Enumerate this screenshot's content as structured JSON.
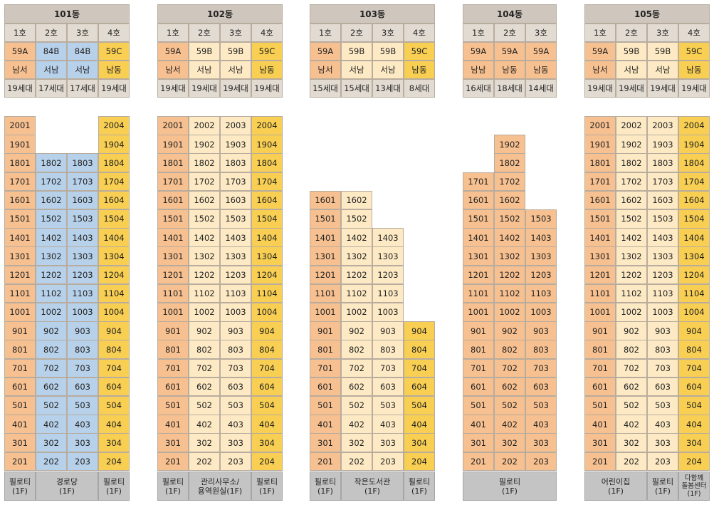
{
  "buildings": [
    {
      "name": "101동",
      "columns": [
        {
          "ho": "1호",
          "type": "59A",
          "dir": "남서",
          "units": "19세대",
          "color": "or",
          "rooms": [
            "2001",
            "1901",
            "1801",
            "1701",
            "1601",
            "1501",
            "1401",
            "1301",
            "1201",
            "1101",
            "1001",
            "901",
            "801",
            "701",
            "601",
            "501",
            "401",
            "301",
            "201"
          ]
        },
        {
          "ho": "2호",
          "type": "84B",
          "dir": "서남",
          "units": "17세대",
          "color": "bl",
          "rooms": [
            "1802",
            "1702",
            "1602",
            "1502",
            "1402",
            "1302",
            "1202",
            "1102",
            "1002",
            "902",
            "802",
            "702",
            "602",
            "502",
            "402",
            "302",
            "202"
          ]
        },
        {
          "ho": "3호",
          "type": "84B",
          "dir": "서남",
          "units": "17세대",
          "color": "bl",
          "rooms": [
            "1803",
            "1703",
            "1603",
            "1503",
            "1403",
            "1303",
            "1203",
            "1103",
            "1003",
            "903",
            "803",
            "703",
            "603",
            "503",
            "403",
            "303",
            "203"
          ]
        },
        {
          "ho": "4호",
          "type": "59C",
          "dir": "남동",
          "units": "19세대",
          "color": "ye",
          "rooms": [
            "2004",
            "1904",
            "1804",
            "1704",
            "1604",
            "1504",
            "1404",
            "1304",
            "1204",
            "1104",
            "1004",
            "904",
            "804",
            "704",
            "604",
            "504",
            "404",
            "304",
            "204"
          ]
        }
      ],
      "ground": [
        {
          "lines": [
            "필로티",
            "(1F)"
          ],
          "span": 1
        },
        {
          "lines": [
            "경로당",
            "(1F)"
          ],
          "span": 2
        },
        {
          "lines": [
            "필로티",
            "(1F)"
          ],
          "span": 1
        }
      ]
    },
    {
      "name": "102동",
      "columns": [
        {
          "ho": "1호",
          "type": "59A",
          "dir": "남서",
          "units": "19세대",
          "color": "or",
          "rooms": [
            "2001",
            "1901",
            "1801",
            "1701",
            "1601",
            "1501",
            "1401",
            "1301",
            "1201",
            "1101",
            "1001",
            "901",
            "801",
            "701",
            "601",
            "501",
            "401",
            "301",
            "201"
          ]
        },
        {
          "ho": "2호",
          "type": "59B",
          "dir": "서남",
          "units": "19세대",
          "color": "cr",
          "rooms": [
            "2002",
            "1902",
            "1802",
            "1702",
            "1602",
            "1502",
            "1402",
            "1302",
            "1202",
            "1102",
            "1002",
            "902",
            "802",
            "702",
            "602",
            "502",
            "402",
            "302",
            "202"
          ]
        },
        {
          "ho": "3호",
          "type": "59B",
          "dir": "서남",
          "units": "19세대",
          "color": "cr",
          "rooms": [
            "2003",
            "1903",
            "1803",
            "1703",
            "1603",
            "1503",
            "1403",
            "1303",
            "1203",
            "1103",
            "1003",
            "903",
            "803",
            "703",
            "603",
            "503",
            "403",
            "303",
            "203"
          ]
        },
        {
          "ho": "4호",
          "type": "59C",
          "dir": "남동",
          "units": "19세대",
          "color": "ye",
          "rooms": [
            "2004",
            "1904",
            "1804",
            "1704",
            "1604",
            "1504",
            "1404",
            "1304",
            "1204",
            "1104",
            "1004",
            "904",
            "804",
            "704",
            "604",
            "504",
            "404",
            "304",
            "204"
          ]
        }
      ],
      "ground": [
        {
          "lines": [
            "필로티",
            "(1F)"
          ],
          "span": 1
        },
        {
          "lines": [
            "관리사무소/",
            "용역원실(1F)"
          ],
          "span": 2
        },
        {
          "lines": [
            "필로티",
            "(1F)"
          ],
          "span": 1
        }
      ]
    },
    {
      "name": "103동",
      "columns": [
        {
          "ho": "1호",
          "type": "59A",
          "dir": "남서",
          "units": "15세대",
          "color": "or",
          "rooms": [
            "1601",
            "1501",
            "1401",
            "1301",
            "1201",
            "1101",
            "1001",
            "901",
            "801",
            "701",
            "601",
            "501",
            "401",
            "301",
            "201"
          ]
        },
        {
          "ho": "2호",
          "type": "59B",
          "dir": "서남",
          "units": "15세대",
          "color": "cr",
          "rooms": [
            "1602",
            "1502",
            "1402",
            "1302",
            "1202",
            "1102",
            "1002",
            "902",
            "802",
            "702",
            "602",
            "502",
            "402",
            "302",
            "202"
          ]
        },
        {
          "ho": "3호",
          "type": "59B",
          "dir": "서남",
          "units": "13세대",
          "color": "cr",
          "rooms": [
            "1403",
            "1303",
            "1203",
            "1103",
            "1003",
            "903",
            "803",
            "703",
            "603",
            "503",
            "403",
            "303",
            "203"
          ]
        },
        {
          "ho": "4호",
          "type": "59C",
          "dir": "남동",
          "units": "8세대",
          "color": "ye",
          "rooms": [
            "904",
            "804",
            "704",
            "604",
            "504",
            "404",
            "304",
            "204"
          ]
        }
      ],
      "ground": [
        {
          "lines": [
            "필로티",
            "(1F)"
          ],
          "span": 1
        },
        {
          "lines": [
            "작은도서관",
            "(1F)"
          ],
          "span": 2
        },
        {
          "lines": [
            "필로티",
            "(1F)"
          ],
          "span": 1
        }
      ]
    },
    {
      "name": "104동",
      "columns": [
        {
          "ho": "1호",
          "type": "59A",
          "dir": "남남",
          "units": "16세대",
          "color": "or",
          "rooms": [
            "1701",
            "1601",
            "1501",
            "1401",
            "1301",
            "1201",
            "1101",
            "1001",
            "901",
            "801",
            "701",
            "601",
            "501",
            "401",
            "301",
            "201"
          ]
        },
        {
          "ho": "2호",
          "type": "59A",
          "dir": "남동",
          "units": "18세대",
          "color": "or",
          "rooms": [
            "1902",
            "1802",
            "1702",
            "1602",
            "1502",
            "1402",
            "1302",
            "1202",
            "1102",
            "1002",
            "902",
            "802",
            "702",
            "602",
            "502",
            "402",
            "302",
            "202"
          ]
        },
        {
          "ho": "3호",
          "type": "59A",
          "dir": "남동",
          "units": "14세대",
          "color": "or",
          "rooms": [
            "1503",
            "1403",
            "1303",
            "1203",
            "1103",
            "1003",
            "903",
            "803",
            "703",
            "603",
            "503",
            "403",
            "303",
            "203"
          ]
        }
      ],
      "ground": [
        {
          "lines": [
            "필로티",
            "(1F)"
          ],
          "span": 3
        }
      ]
    },
    {
      "name": "105동",
      "columns": [
        {
          "ho": "1호",
          "type": "59A",
          "dir": "남서",
          "units": "19세대",
          "color": "or",
          "rooms": [
            "2001",
            "1901",
            "1801",
            "1701",
            "1601",
            "1501",
            "1401",
            "1301",
            "1201",
            "1101",
            "1001",
            "901",
            "801",
            "701",
            "601",
            "501",
            "401",
            "301",
            "201"
          ]
        },
        {
          "ho": "2호",
          "type": "59B",
          "dir": "서남",
          "units": "19세대",
          "color": "cr",
          "rooms": [
            "2002",
            "1902",
            "1802",
            "1702",
            "1602",
            "1502",
            "1402",
            "1302",
            "1202",
            "1102",
            "1002",
            "902",
            "802",
            "702",
            "602",
            "502",
            "402",
            "302",
            "202"
          ]
        },
        {
          "ho": "3호",
          "type": "59B",
          "dir": "서남",
          "units": "19세대",
          "color": "cr",
          "rooms": [
            "2003",
            "1903",
            "1803",
            "1703",
            "1603",
            "1503",
            "1403",
            "1303",
            "1203",
            "1103",
            "1003",
            "903",
            "803",
            "703",
            "603",
            "503",
            "403",
            "303",
            "203"
          ]
        },
        {
          "ho": "4호",
          "type": "59C",
          "dir": "남동",
          "units": "19세대",
          "color": "ye",
          "rooms": [
            "2004",
            "1904",
            "1804",
            "1704",
            "1604",
            "1504",
            "1404",
            "1304",
            "1204",
            "1104",
            "1004",
            "904",
            "804",
            "704",
            "604",
            "504",
            "404",
            "304",
            "204"
          ]
        }
      ],
      "ground": [
        {
          "lines": [
            "어린이집",
            "(1F)"
          ],
          "span": 2
        },
        {
          "lines": [
            "필로티",
            "(1F)"
          ],
          "span": 1
        },
        {
          "lines": [
            "다함께",
            "돌봄센터",
            "(1F)"
          ],
          "span": 1,
          "small": true
        }
      ]
    }
  ]
}
